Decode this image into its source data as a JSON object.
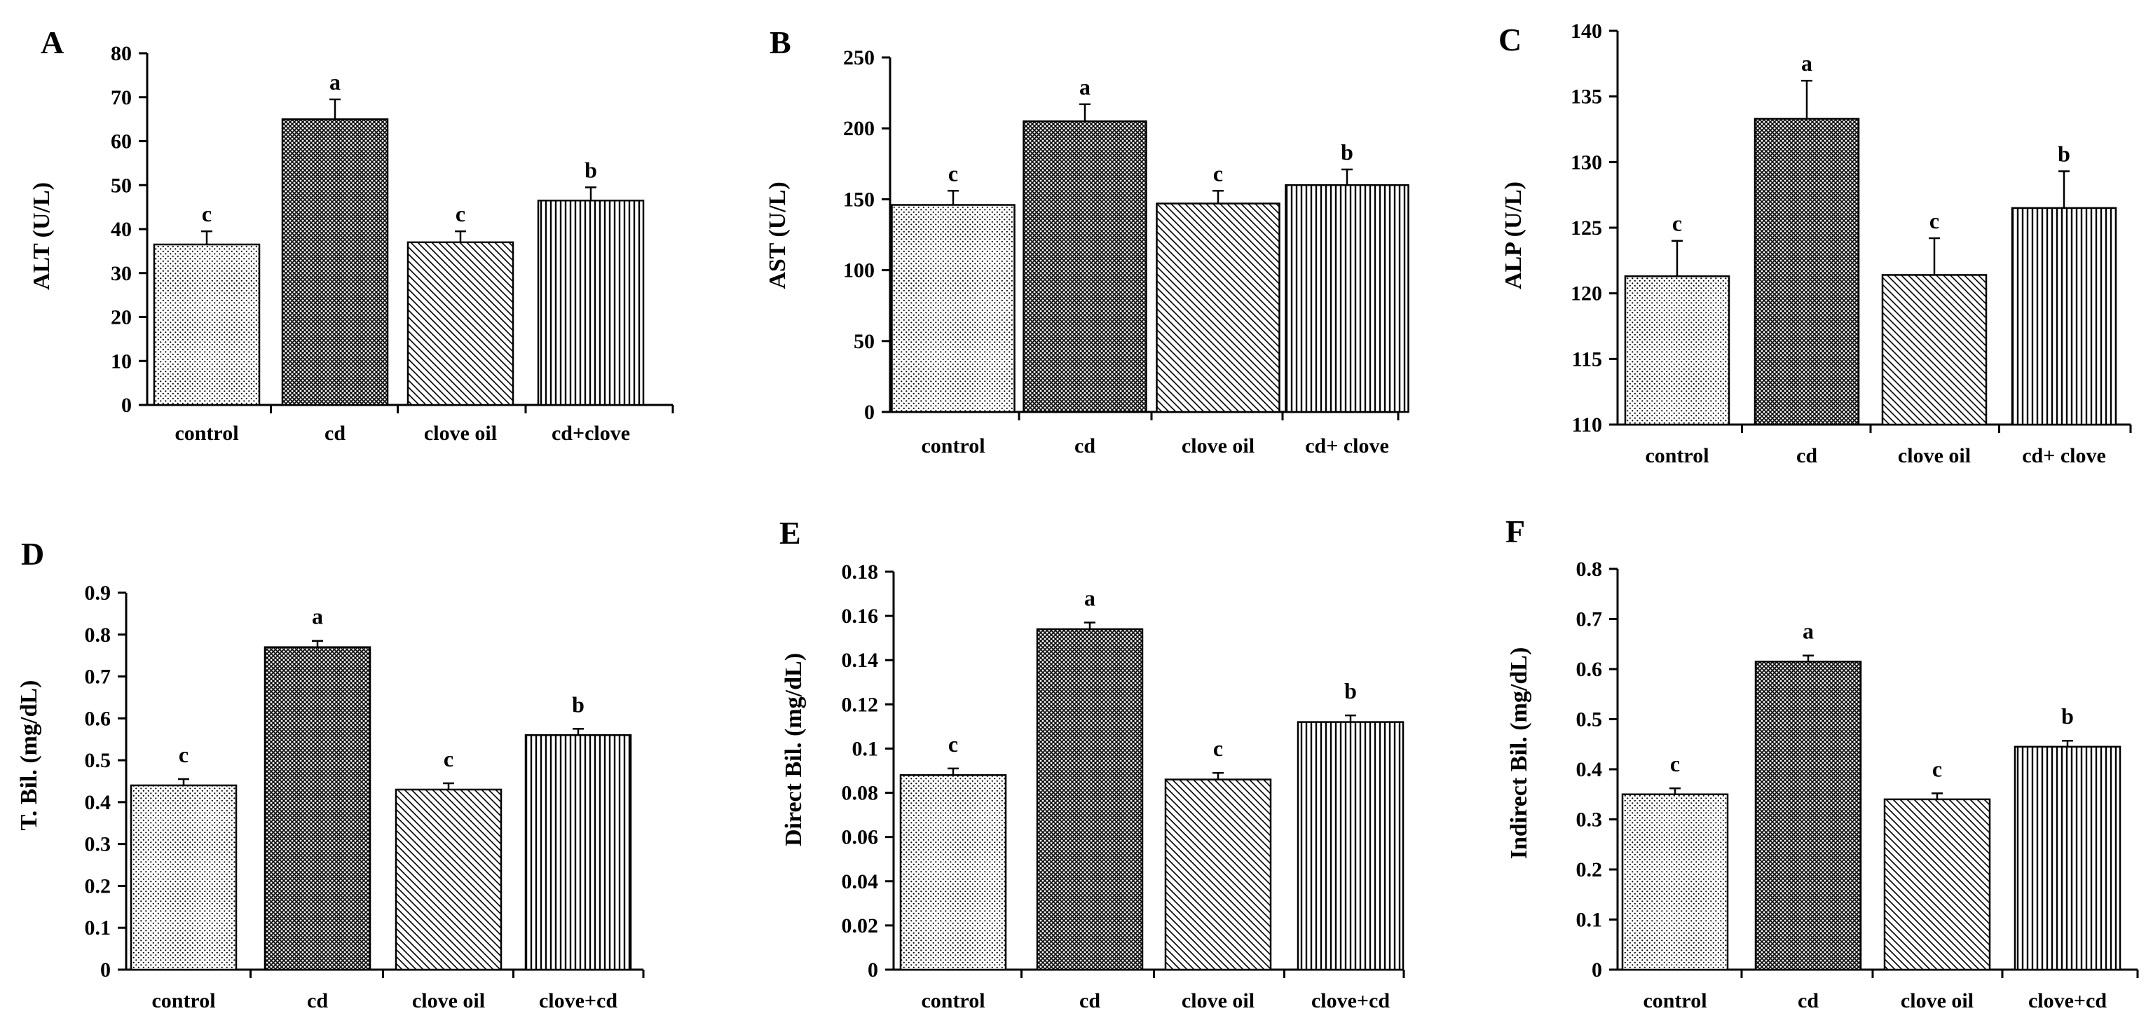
{
  "chart_data": [
    {
      "type": "bar",
      "panel": "A",
      "ylabel": "ALT (U/L)",
      "ylim": [
        0,
        80
      ],
      "yticks": [
        "0",
        "10",
        "20",
        "30",
        "40",
        "50",
        "60",
        "70",
        "80"
      ],
      "categories": [
        "control",
        "cd",
        "clove oil",
        "cd+clove"
      ],
      "values": [
        36.5,
        65,
        37,
        46.5
      ],
      "errors": [
        3,
        4.5,
        2.5,
        3
      ],
      "significance": [
        "c",
        "a",
        "c",
        "b"
      ],
      "patterns": [
        "dots",
        "crosshatch",
        "diag",
        "vert"
      ]
    },
    {
      "type": "bar",
      "panel": "B",
      "ylabel": "AST (U/L)",
      "ylim": [
        0,
        250
      ],
      "yticks": [
        "0",
        "50",
        "100",
        "150",
        "200",
        "250"
      ],
      "categories": [
        "control",
        "cd",
        "clove oil",
        "cd+ clove"
      ],
      "values": [
        146,
        205,
        147,
        160
      ],
      "errors": [
        10,
        12,
        9,
        11
      ],
      "significance": [
        "c",
        "a",
        "c",
        "b"
      ],
      "patterns": [
        "dots",
        "crosshatch",
        "diag",
        "vert"
      ]
    },
    {
      "type": "bar",
      "panel": "C",
      "ylabel": "ALP (U/L)",
      "ylim": [
        110,
        140
      ],
      "yticks": [
        "110",
        "115",
        "120",
        "125",
        "130",
        "135",
        "140"
      ],
      "categories": [
        "control",
        "cd",
        "clove oil",
        "cd+ clove"
      ],
      "values": [
        121.3,
        133.3,
        121.4,
        126.5
      ],
      "errors": [
        2.7,
        2.9,
        2.8,
        2.8
      ],
      "significance": [
        "c",
        "a",
        "c",
        "b"
      ],
      "patterns": [
        "dots",
        "crosshatch",
        "diag",
        "vert"
      ]
    },
    {
      "type": "bar",
      "panel": "D",
      "ylabel": "T. Bil. (mg/dL)",
      "ylim": [
        0,
        0.9
      ],
      "yticks": [
        "0",
        "0.1",
        "0.2",
        "0.3",
        "0.4",
        "0.5",
        "0.6",
        "0.7",
        "0.8",
        "0.9"
      ],
      "categories": [
        "control",
        "cd",
        "clove oil",
        "clove+cd"
      ],
      "values": [
        0.44,
        0.77,
        0.43,
        0.56
      ],
      "errors": [
        0.015,
        0.015,
        0.015,
        0.015
      ],
      "significance": [
        "c",
        "a",
        "c",
        "b"
      ],
      "patterns": [
        "dots",
        "crosshatch",
        "diag",
        "vert"
      ]
    },
    {
      "type": "bar",
      "panel": "E",
      "ylabel": "Direct Bil. (mg/dL)",
      "ylim": [
        0,
        0.18
      ],
      "yticks": [
        "0",
        "0.02",
        "0.04",
        "0.06",
        "0.08",
        "0.1",
        "0.12",
        "0.14",
        "0.16",
        "0.18"
      ],
      "categories": [
        "control",
        "cd",
        "clove oil",
        "clove+cd"
      ],
      "values": [
        0.088,
        0.154,
        0.086,
        0.112
      ],
      "errors": [
        0.003,
        0.003,
        0.003,
        0.003
      ],
      "significance": [
        "c",
        "a",
        "c",
        "b"
      ],
      "patterns": [
        "dots",
        "crosshatch",
        "diag",
        "vert"
      ]
    },
    {
      "type": "bar",
      "panel": "F",
      "ylabel": "Indirect Bil. (mg/dL)",
      "ylim": [
        0,
        0.8
      ],
      "yticks": [
        "0",
        "0.1",
        "0.2",
        "0.3",
        "0.4",
        "0.5",
        "0.6",
        "0.7",
        "0.8"
      ],
      "categories": [
        "control",
        "cd",
        "clove oil",
        "clove+cd"
      ],
      "values": [
        0.35,
        0.615,
        0.34,
        0.445
      ],
      "errors": [
        0.012,
        0.012,
        0.012,
        0.012
      ],
      "significance": [
        "c",
        "a",
        "c",
        "b"
      ],
      "patterns": [
        "dots",
        "crosshatch",
        "diag",
        "vert"
      ]
    }
  ]
}
